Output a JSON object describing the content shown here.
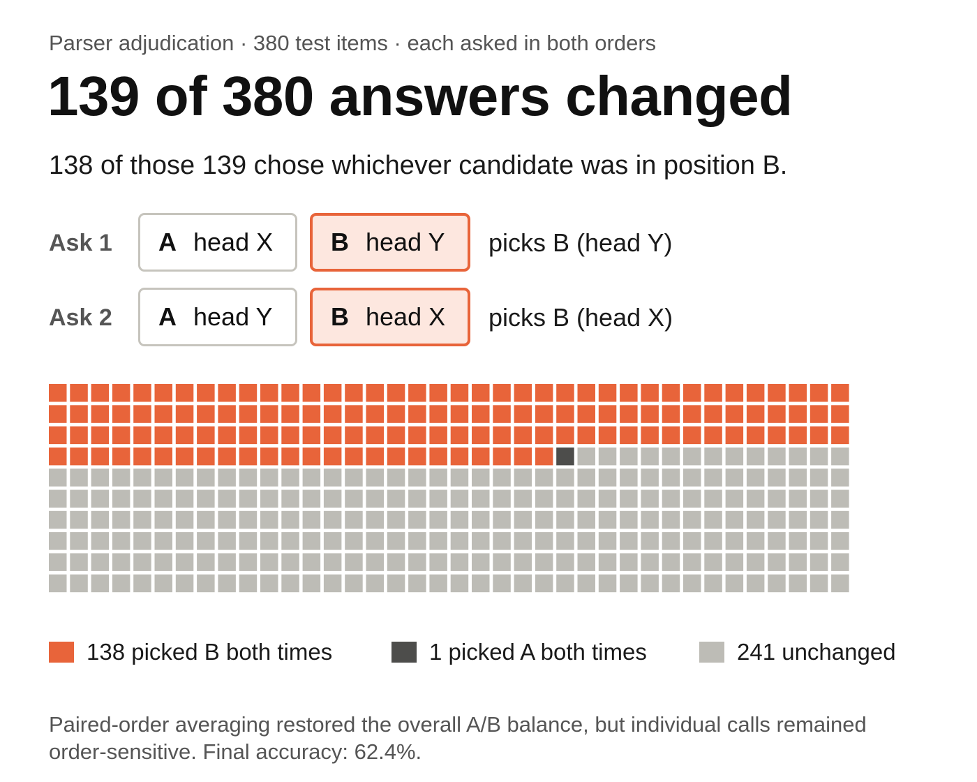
{
  "kicker": "Parser adjudication · 380 test items · each asked in both orders",
  "headline": "139 of 380 answers changed",
  "subhead": "138 of those 139 chose whichever candidate was in position B.",
  "asks": [
    {
      "label": "Ask 1",
      "a": {
        "pos": "A",
        "text": "head X"
      },
      "b": {
        "pos": "B",
        "text": "head Y"
      },
      "result": "picks B (head Y)"
    },
    {
      "label": "Ask 2",
      "a": {
        "pos": "A",
        "text": "head Y"
      },
      "b": {
        "pos": "B",
        "text": "head X"
      },
      "result": "picks B (head X)"
    }
  ],
  "colors": {
    "picked_b": "#e8643a",
    "picked_a": "#4d4d4b",
    "unchanged": "#bdbcb6",
    "b_fill": "#fde7df"
  },
  "chart_data": {
    "type": "waffle",
    "total": 380,
    "columns": 38,
    "rows": 10,
    "fill_order": "row-major",
    "categories": [
      {
        "name": "picked B both times",
        "count": 138,
        "color": "#e8643a"
      },
      {
        "name": "picked A both times",
        "count": 1,
        "color": "#4d4d4b"
      },
      {
        "name": "unchanged",
        "count": 241,
        "color": "#bdbcb6"
      }
    ]
  },
  "legend": [
    {
      "text": "138 picked B both times",
      "color": "#e8643a"
    },
    {
      "text": "1 picked A both times",
      "color": "#4d4d4b"
    },
    {
      "text": "241 unchanged",
      "color": "#bdbcb6"
    }
  ],
  "footnote": "Paired-order averaging restored the overall A/B balance, but individual calls remained order-sensitive. Final accuracy: 62.4%."
}
